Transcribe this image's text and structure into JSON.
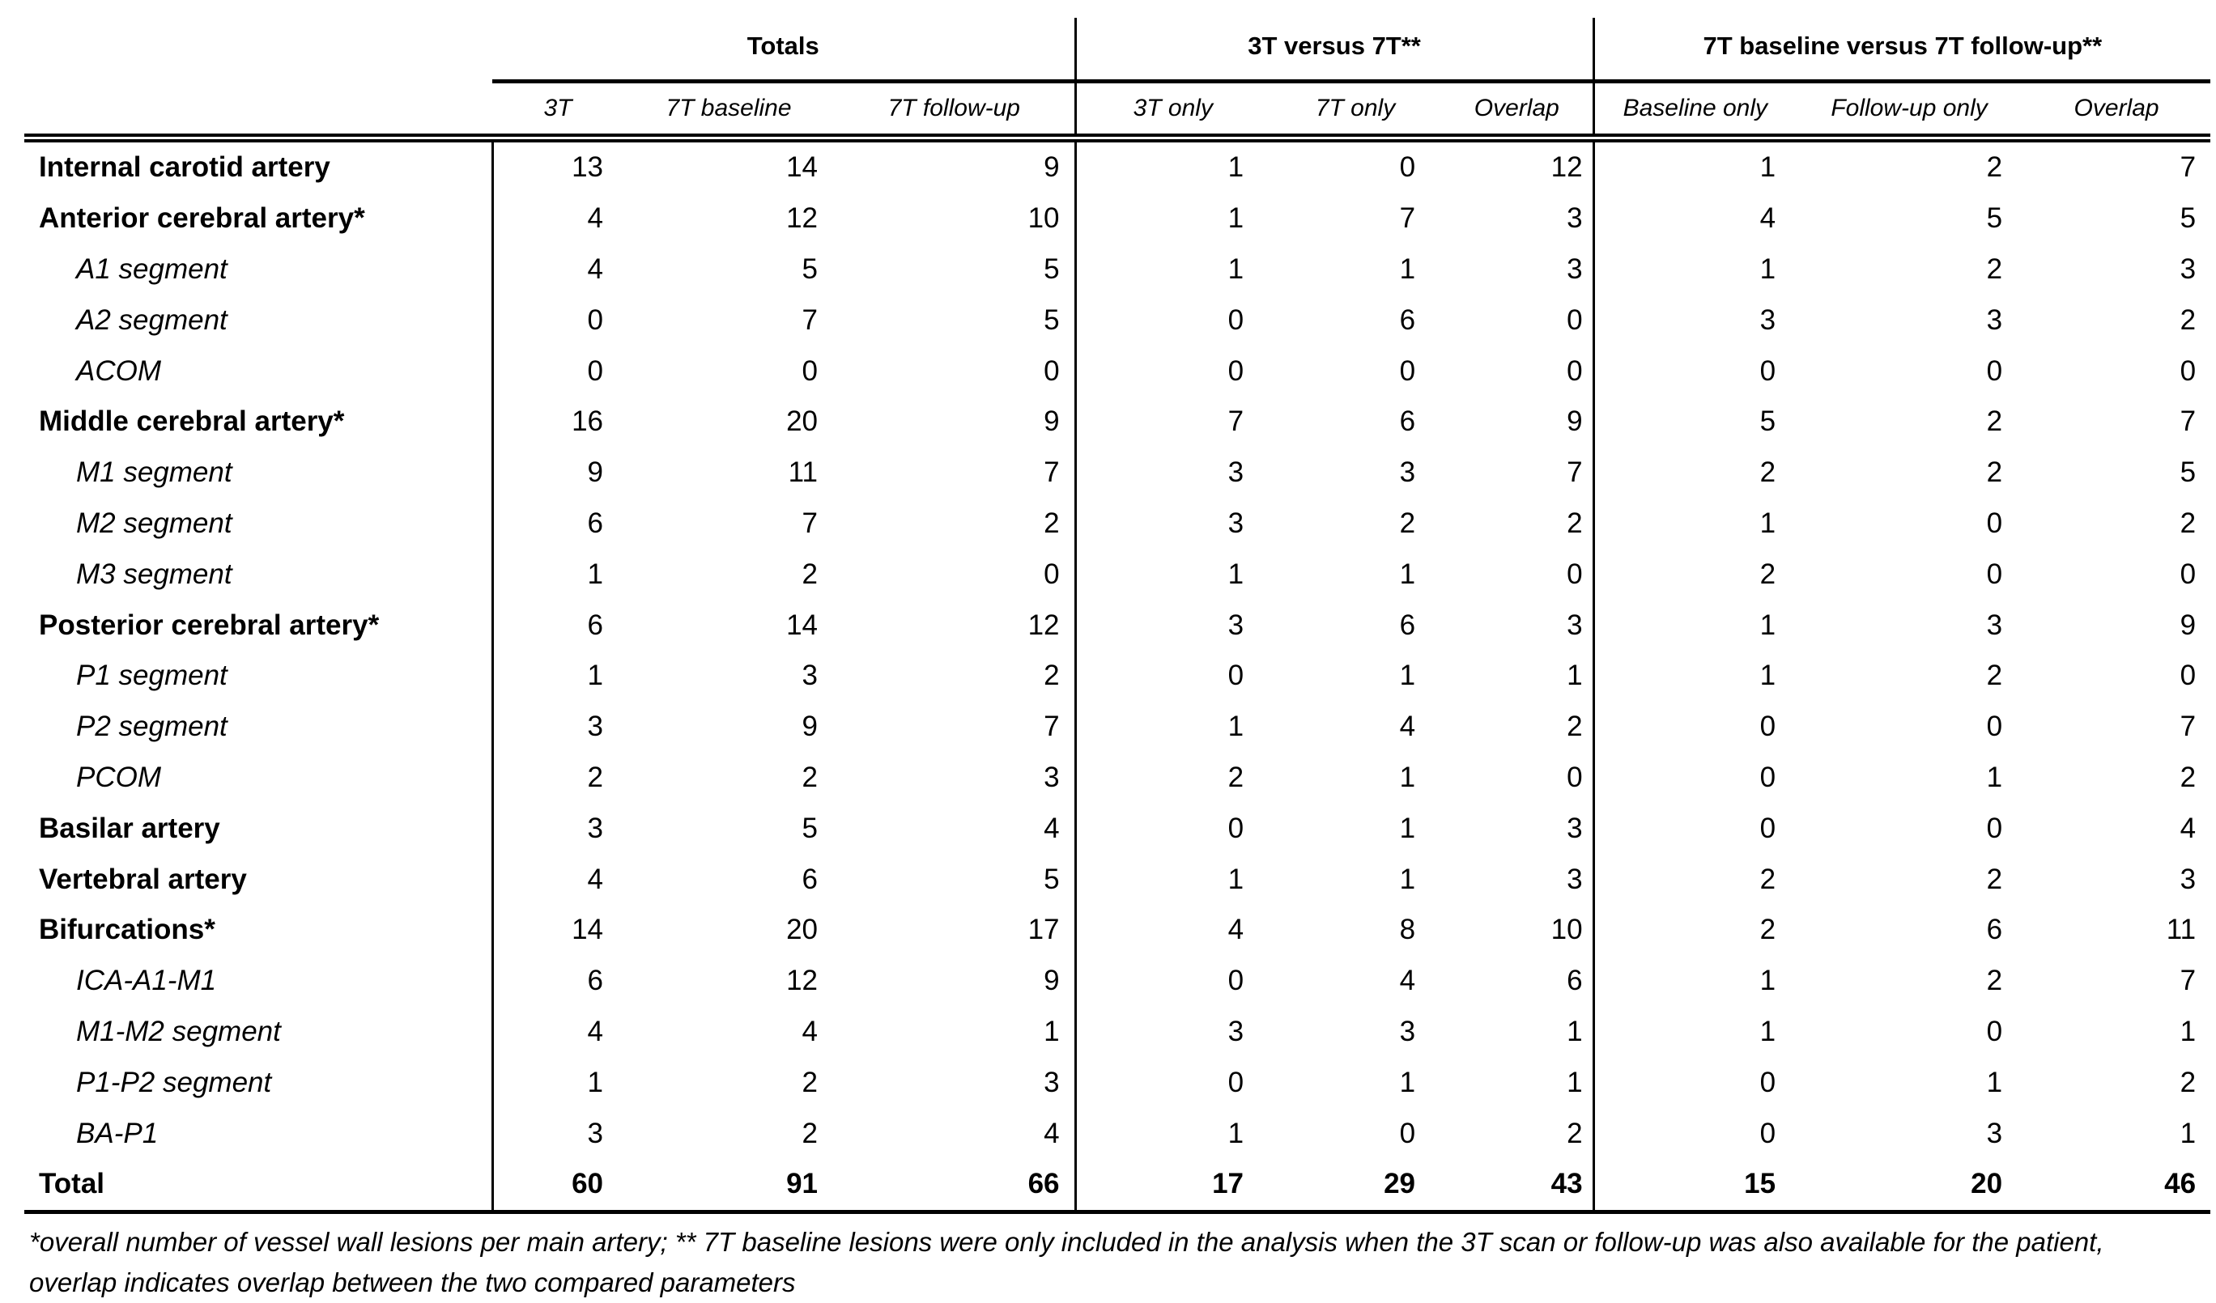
{
  "table": {
    "column_groups": [
      {
        "label": "Totals",
        "columns": [
          "3T",
          "7T baseline",
          "7T follow-up"
        ]
      },
      {
        "label": "3T versus 7T**",
        "columns": [
          "3T only",
          "7T only",
          "Overlap"
        ]
      },
      {
        "label": "7T baseline versus 7T follow-up**",
        "columns": [
          "Baseline only",
          "Follow-up only",
          "Overlap"
        ]
      }
    ],
    "rows": [
      {
        "label": "Internal carotid artery",
        "style": "main",
        "values": [
          13,
          14,
          9,
          1,
          0,
          12,
          1,
          2,
          7
        ]
      },
      {
        "label": "Anterior cerebral artery*",
        "style": "main",
        "values": [
          4,
          12,
          10,
          1,
          7,
          3,
          4,
          5,
          5
        ]
      },
      {
        "label": "A1 segment",
        "style": "sub",
        "values": [
          4,
          5,
          5,
          1,
          1,
          3,
          1,
          2,
          3
        ]
      },
      {
        "label": "A2 segment",
        "style": "sub",
        "values": [
          0,
          7,
          5,
          0,
          6,
          0,
          3,
          3,
          2
        ]
      },
      {
        "label": "ACOM",
        "style": "sub",
        "values": [
          0,
          0,
          0,
          0,
          0,
          0,
          0,
          0,
          0
        ]
      },
      {
        "label": "Middle cerebral artery*",
        "style": "main",
        "values": [
          16,
          20,
          9,
          7,
          6,
          9,
          5,
          2,
          7
        ]
      },
      {
        "label": "M1 segment",
        "style": "sub",
        "values": [
          9,
          11,
          7,
          3,
          3,
          7,
          2,
          2,
          5
        ]
      },
      {
        "label": "M2 segment",
        "style": "sub",
        "values": [
          6,
          7,
          2,
          3,
          2,
          2,
          1,
          0,
          2
        ]
      },
      {
        "label": "M3 segment",
        "style": "sub",
        "values": [
          1,
          2,
          0,
          1,
          1,
          0,
          2,
          0,
          0
        ]
      },
      {
        "label": "Posterior cerebral artery*",
        "style": "main",
        "values": [
          6,
          14,
          12,
          3,
          6,
          3,
          1,
          3,
          9
        ]
      },
      {
        "label": "P1 segment",
        "style": "sub",
        "values": [
          1,
          3,
          2,
          0,
          1,
          1,
          1,
          2,
          0
        ]
      },
      {
        "label": "P2 segment",
        "style": "sub",
        "values": [
          3,
          9,
          7,
          1,
          4,
          2,
          0,
          0,
          7
        ]
      },
      {
        "label": "PCOM",
        "style": "sub",
        "values": [
          2,
          2,
          3,
          2,
          1,
          0,
          0,
          1,
          2
        ]
      },
      {
        "label": "Basilar artery",
        "style": "main",
        "values": [
          3,
          5,
          4,
          0,
          1,
          3,
          0,
          0,
          4
        ]
      },
      {
        "label": "Vertebral artery",
        "style": "main",
        "values": [
          4,
          6,
          5,
          1,
          1,
          3,
          2,
          2,
          3
        ]
      },
      {
        "label": "Bifurcations*",
        "style": "main",
        "values": [
          14,
          20,
          17,
          4,
          8,
          10,
          2,
          6,
          11
        ]
      },
      {
        "label": "ICA-A1-M1",
        "style": "sub",
        "values": [
          6,
          12,
          9,
          0,
          4,
          6,
          1,
          2,
          7
        ]
      },
      {
        "label": "M1-M2 segment",
        "style": "sub",
        "values": [
          4,
          4,
          1,
          3,
          3,
          1,
          1,
          0,
          1
        ]
      },
      {
        "label": "P1-P2 segment",
        "style": "sub",
        "values": [
          1,
          2,
          3,
          0,
          1,
          1,
          0,
          1,
          2
        ]
      },
      {
        "label": "BA-P1",
        "style": "sub",
        "values": [
          3,
          2,
          4,
          1,
          0,
          2,
          0,
          3,
          1
        ]
      },
      {
        "label": "Total",
        "style": "total",
        "values": [
          60,
          91,
          66,
          17,
          29,
          43,
          15,
          20,
          46
        ]
      }
    ],
    "footnote": "*overall number of vessel wall lesions per main artery; ** 7T baseline lesions were only included in the analysis when the 3T scan or follow-up was also available for the patient, overlap indicates overlap between the two compared parameters"
  }
}
